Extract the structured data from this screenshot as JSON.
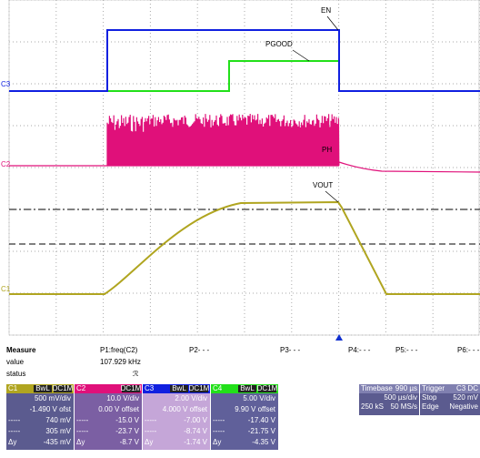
{
  "plot": {
    "labels": {
      "en": "EN",
      "pgood": "PGOOD",
      "ph": "PH",
      "vout": "VOUT"
    },
    "channel_markers": [
      "C3",
      "C2",
      "C1"
    ]
  },
  "measure": {
    "header": [
      "Measure",
      "P1:freq(C2)",
      "P2- - -",
      "P3- - -",
      "P4:- - -",
      "P5:- - -",
      "P6:- - -"
    ],
    "value_label": "value",
    "value": "107.929 kHz",
    "status_label": "status",
    "status": "ℛ"
  },
  "channels": [
    {
      "name": "C1",
      "tags": [
        "BwL",
        "DC1M"
      ],
      "rows": [
        {
          "value": "500 mV/div"
        },
        {
          "value": "-1.490 V ofst"
        },
        {
          "label": "-----",
          "value": "740 mV"
        },
        {
          "label": "-----",
          "value": "305 mV"
        },
        {
          "label": "Δy",
          "value": "-435 mV"
        }
      ]
    },
    {
      "name": "C2",
      "tags": [
        "DC1M"
      ],
      "rows": [
        {
          "value": "10.0 V/div"
        },
        {
          "value": "0.00 V offset"
        },
        {
          "label": "-----",
          "value": "-15.0 V"
        },
        {
          "label": "-----",
          "value": "-23.7 V"
        },
        {
          "label": "Δy",
          "value": "-8.7 V"
        }
      ]
    },
    {
      "name": "C3",
      "tags": [
        "BwL",
        "DC1M"
      ],
      "rows": [
        {
          "value": "2.00 V/div"
        },
        {
          "value": "4.000 V offset"
        },
        {
          "label": "-----",
          "value": "-7.00 V"
        },
        {
          "label": "-----",
          "value": "-8.74 V"
        },
        {
          "label": "Δy",
          "value": "-1.74 V"
        }
      ]
    },
    {
      "name": "C4",
      "tags": [
        "BwL",
        "DC1M"
      ],
      "rows": [
        {
          "value": "5.00 V/div"
        },
        {
          "value": "9.90 V offset"
        },
        {
          "label": "-----",
          "value": "-17.40 V"
        },
        {
          "label": "-----",
          "value": "-21.75 V"
        },
        {
          "label": "Δy",
          "value": "-4.35 V"
        }
      ]
    }
  ],
  "timebase": {
    "title": "Timebase",
    "delay": "990 µs",
    "scale": "500 µs/div",
    "samples": "250 kS",
    "rate": "50 MS/s"
  },
  "trigger": {
    "title": "Trigger",
    "source": "C3 DC",
    "mode": "Stop",
    "level": "520 mV",
    "type": "Edge",
    "slope": "Negative"
  }
}
